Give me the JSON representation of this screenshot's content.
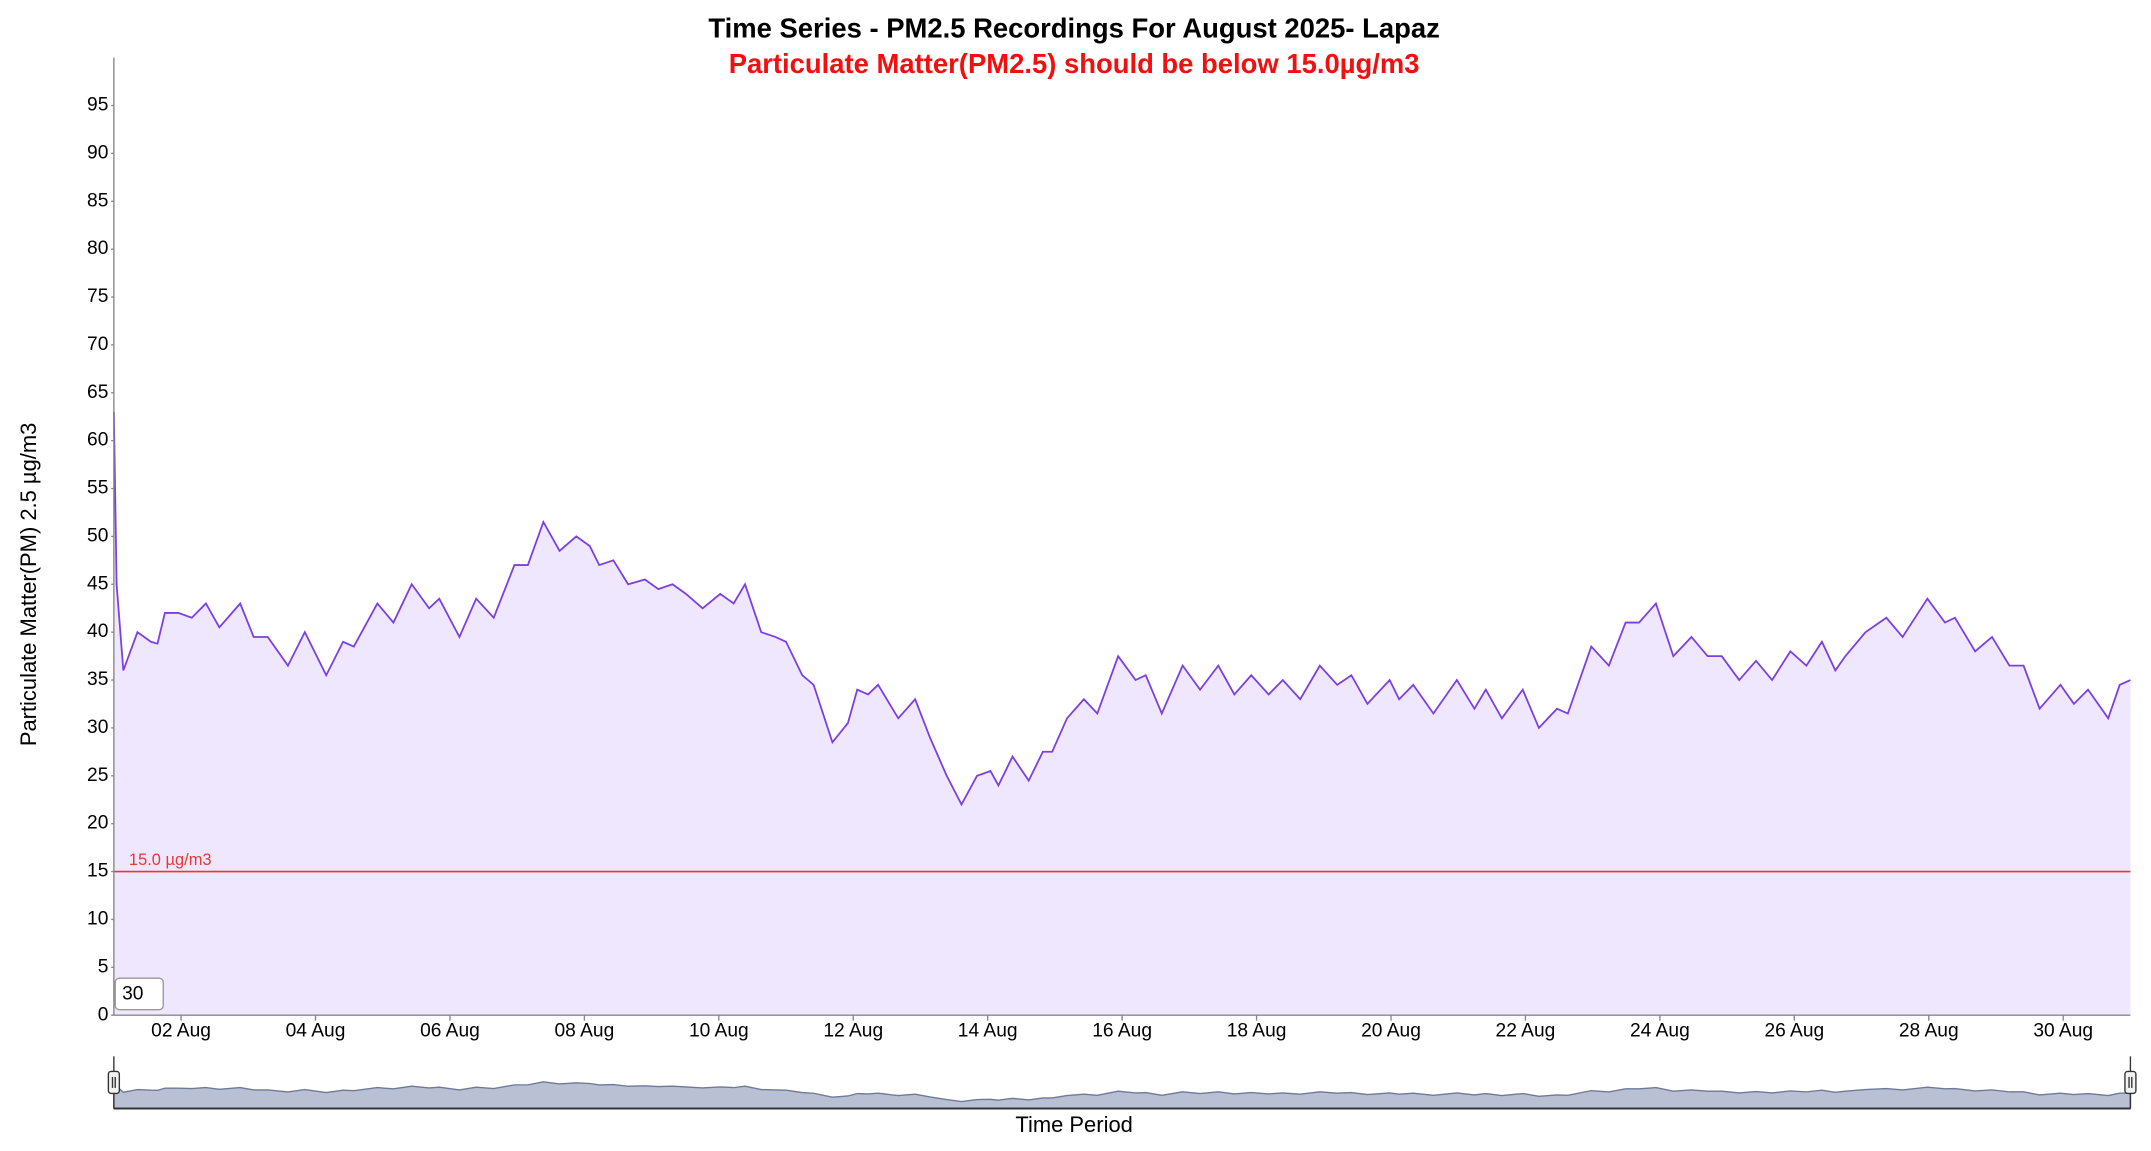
{
  "chart_data": {
    "type": "area",
    "title": "Time Series - PM2.5 Recordings For August 2025- Lapaz",
    "subtitle": "Particulate Matter(PM2.5) should be below 15.0µg/m3",
    "x_label": "Time Period",
    "y_label": "Particulate Matter(PM) 2.5 µg/m3",
    "zoom_input": "30",
    "threshold": {
      "value": 15,
      "label": "15.0 µg/m3",
      "color": "#e53935"
    },
    "xlim": [
      1,
      31
    ],
    "xticks": [
      {
        "value": 2,
        "label": "02 Aug"
      },
      {
        "value": 4,
        "label": "04 Aug"
      },
      {
        "value": 6,
        "label": "06 Aug"
      },
      {
        "value": 8,
        "label": "08 Aug"
      },
      {
        "value": 10,
        "label": "10 Aug"
      },
      {
        "value": 12,
        "label": "12 Aug"
      },
      {
        "value": 14,
        "label": "14 Aug"
      },
      {
        "value": 16,
        "label": "16 Aug"
      },
      {
        "value": 18,
        "label": "18 Aug"
      },
      {
        "value": 20,
        "label": "20 Aug"
      },
      {
        "value": 22,
        "label": "22 Aug"
      },
      {
        "value": 24,
        "label": "24 Aug"
      },
      {
        "value": 26,
        "label": "26 Aug"
      },
      {
        "value": 28,
        "label": "28 Aug"
      },
      {
        "value": 30,
        "label": "30 Aug"
      }
    ],
    "ylim": [
      0,
      100
    ],
    "yticks": [
      0,
      5,
      10,
      15,
      20,
      25,
      30,
      35,
      40,
      45,
      50,
      55,
      60,
      65,
      70,
      75,
      80,
      85,
      90,
      95
    ],
    "line_color": "#7b3fe4",
    "fill_color": "#efe7fd",
    "x": [
      1.0,
      1.04,
      1.14,
      1.35,
      1.55,
      1.65,
      1.76,
      1.96,
      2.16,
      2.37,
      2.57,
      2.88,
      3.08,
      3.29,
      3.59,
      3.84,
      4.16,
      4.41,
      4.57,
      4.92,
      5.16,
      5.43,
      5.69,
      5.84,
      6.14,
      6.39,
      6.65,
      6.96,
      7.16,
      7.39,
      7.63,
      7.88,
      8.08,
      8.22,
      8.43,
      8.65,
      8.9,
      9.1,
      9.31,
      9.51,
      9.76,
      10.02,
      10.22,
      10.39,
      10.63,
      10.84,
      11.0,
      11.24,
      11.41,
      11.69,
      11.92,
      12.06,
      12.22,
      12.37,
      12.67,
      12.92,
      13.14,
      13.39,
      13.61,
      13.84,
      14.04,
      14.16,
      14.37,
      14.61,
      14.82,
      14.96,
      15.18,
      15.43,
      15.63,
      15.94,
      16.2,
      16.35,
      16.59,
      16.9,
      17.16,
      17.43,
      17.67,
      17.92,
      18.18,
      18.39,
      18.65,
      18.94,
      19.2,
      19.41,
      19.65,
      19.98,
      20.12,
      20.33,
      20.63,
      20.98,
      21.24,
      21.41,
      21.65,
      21.96,
      22.2,
      22.47,
      22.63,
      22.98,
      23.24,
      23.49,
      23.69,
      23.94,
      24.2,
      24.47,
      24.71,
      24.92,
      25.18,
      25.43,
      25.67,
      25.94,
      26.18,
      26.41,
      26.61,
      26.76,
      27.06,
      27.37,
      27.61,
      27.98,
      28.24,
      28.39,
      28.69,
      28.94,
      29.2,
      29.41,
      29.65,
      29.96,
      30.16,
      30.37,
      30.67,
      30.84,
      31.0
    ],
    "values": [
      63,
      45,
      36,
      40,
      39,
      38.8,
      42,
      42,
      41.5,
      43,
      40.5,
      43,
      39.5,
      39.5,
      36.5,
      40,
      35.5,
      39,
      38.5,
      43,
      41,
      45,
      42.5,
      43.5,
      39.5,
      43.5,
      41.5,
      47,
      47,
      51.5,
      48.5,
      50,
      49,
      47,
      47.5,
      45,
      45.5,
      44.5,
      45,
      44,
      42.5,
      44,
      43,
      45,
      40,
      39.5,
      39,
      35.5,
      34.5,
      28.5,
      30.5,
      34,
      33.5,
      34.5,
      31,
      33,
      29,
      25,
      22,
      25,
      25.5,
      24,
      27,
      24.5,
      27.5,
      27.5,
      31,
      33,
      31.5,
      37.5,
      35,
      35.5,
      31.5,
      36.5,
      34,
      36.5,
      33.5,
      35.5,
      33.5,
      35,
      33,
      36.5,
      34.5,
      35.5,
      32.5,
      35,
      33,
      34.5,
      31.5,
      35,
      32,
      34,
      31,
      34,
      30,
      32,
      31.5,
      38.5,
      36.5,
      41,
      41,
      43,
      37.5,
      39.5,
      37.5,
      37.5,
      35,
      37,
      35,
      38,
      36.5,
      39,
      36,
      37.5,
      40,
      41.5,
      39.5,
      43.5,
      41,
      41.5,
      38,
      39.5,
      36.5,
      36.5,
      32,
      34.5,
      32.5,
      34,
      31,
      34.5,
      35
    ]
  }
}
